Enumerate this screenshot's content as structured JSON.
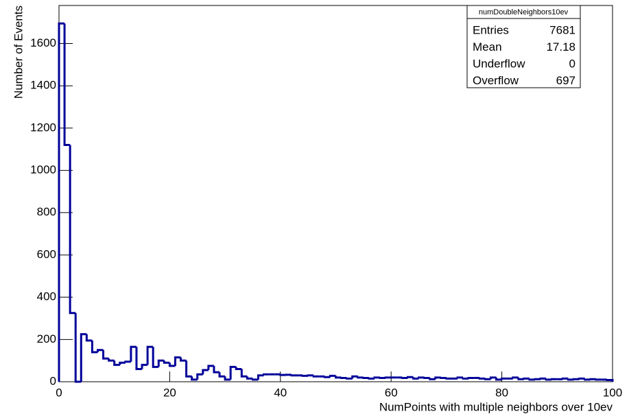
{
  "chart_data": {
    "type": "histogram",
    "x_label": "NumPoints with multiple neighbors over 10ev",
    "y_label": "Number of Events",
    "bins": [
      0,
      1,
      2,
      3,
      4,
      5,
      6,
      7,
      8,
      9,
      10,
      11,
      12,
      13,
      14,
      15,
      16,
      17,
      18,
      19,
      20,
      21,
      22,
      23,
      24,
      25,
      26,
      27,
      28,
      29,
      30,
      31,
      32,
      33,
      34,
      35,
      36,
      37,
      38,
      39,
      40,
      41,
      42,
      43,
      44,
      45,
      46,
      47,
      48,
      49,
      50,
      51,
      52,
      53,
      54,
      55,
      56,
      57,
      58,
      59,
      60,
      61,
      62,
      63,
      64,
      65,
      66,
      67,
      68,
      69,
      70,
      71,
      72,
      73,
      74,
      75,
      76,
      77,
      78,
      79,
      80,
      81,
      82,
      83,
      84,
      85,
      86,
      87,
      88,
      89,
      90,
      91,
      92,
      93,
      94,
      95,
      96,
      97,
      98,
      99,
      100
    ],
    "values": [
      1695,
      1120,
      325,
      0,
      225,
      195,
      140,
      150,
      110,
      100,
      80,
      90,
      95,
      165,
      60,
      80,
      165,
      70,
      100,
      90,
      75,
      115,
      100,
      25,
      10,
      35,
      55,
      75,
      45,
      25,
      10,
      70,
      60,
      25,
      15,
      10,
      30,
      35,
      35,
      35,
      32,
      33,
      30,
      30,
      28,
      30,
      25,
      25,
      22,
      28,
      20,
      18,
      15,
      25,
      20,
      18,
      15,
      20,
      18,
      20,
      20,
      20,
      18,
      22,
      15,
      20,
      18,
      12,
      20,
      18,
      15,
      15,
      20,
      15,
      18,
      18,
      15,
      12,
      20,
      10,
      15,
      15,
      20,
      12,
      15,
      10,
      12,
      15,
      10,
      12,
      12,
      15,
      10,
      12,
      15,
      10,
      12,
      10,
      10,
      8
    ],
    "color": "#000099",
    "xlim": [
      0,
      100
    ],
    "xticks": [
      0,
      20,
      40,
      60,
      80,
      100
    ],
    "ylim": [
      0,
      1780
    ],
    "yticks": [
      0,
      200,
      400,
      600,
      800,
      1000,
      1200,
      1400,
      1600
    ],
    "stats": {
      "title": "numDoubleNeighbors10ev",
      "rows": [
        [
          "Entries",
          7681
        ],
        [
          "Mean",
          17.18
        ],
        [
          "Underflow",
          0
        ],
        [
          "Overflow",
          697
        ]
      ]
    }
  }
}
